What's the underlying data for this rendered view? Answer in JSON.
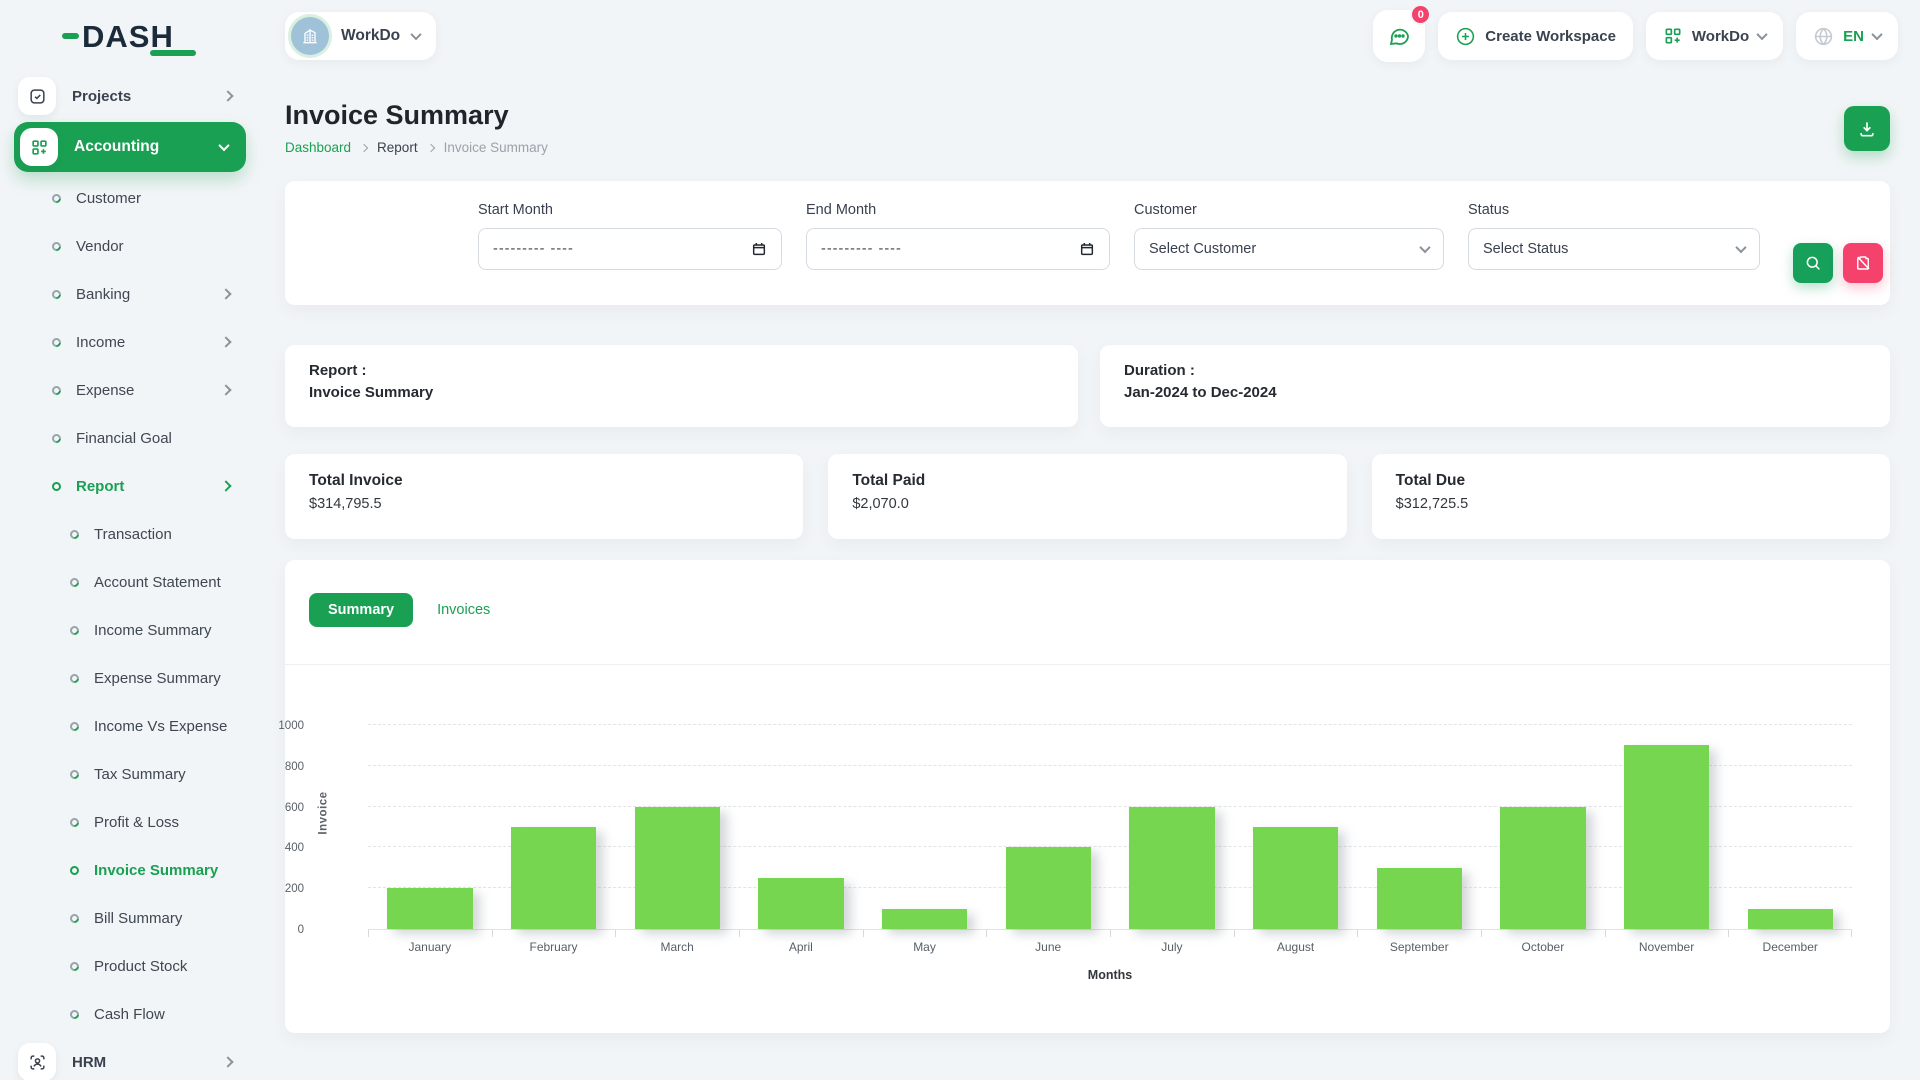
{
  "brand": {
    "logo_text": "DASH"
  },
  "topbar": {
    "workspace_selector_label": "WorkDo",
    "messages_badge": "0",
    "create_workspace_label": "Create Workspace",
    "workspace_menu_label": "WorkDo",
    "language_label": "EN"
  },
  "sidebar": {
    "projects": {
      "label": "Projects"
    },
    "accounting": {
      "label": "Accounting"
    },
    "accounting_items": [
      {
        "label": "Customer"
      },
      {
        "label": "Vendor"
      },
      {
        "label": "Banking"
      },
      {
        "label": "Income"
      },
      {
        "label": "Expense"
      },
      {
        "label": "Financial Goal"
      },
      {
        "label": "Report"
      }
    ],
    "report_items": [
      {
        "label": "Transaction"
      },
      {
        "label": "Account Statement"
      },
      {
        "label": "Income Summary"
      },
      {
        "label": "Expense Summary"
      },
      {
        "label": "Income Vs Expense"
      },
      {
        "label": "Tax Summary"
      },
      {
        "label": "Profit & Loss"
      },
      {
        "label": "Invoice Summary"
      },
      {
        "label": "Bill Summary"
      },
      {
        "label": "Product Stock"
      },
      {
        "label": "Cash Flow"
      }
    ],
    "hrm": {
      "label": "HRM"
    }
  },
  "page": {
    "title": "Invoice Summary",
    "breadcrumb": {
      "home": "Dashboard",
      "section": "Report",
      "current": "Invoice Summary"
    }
  },
  "filters": {
    "start_month": {
      "label": "Start Month",
      "placeholder": "--------- ----"
    },
    "end_month": {
      "label": "End Month",
      "placeholder": "--------- ----"
    },
    "customer": {
      "label": "Customer",
      "value": "Select Customer"
    },
    "status": {
      "label": "Status",
      "value": "Select Status"
    }
  },
  "info_cards": {
    "report": {
      "label": "Report :",
      "value": "Invoice Summary"
    },
    "duration": {
      "label": "Duration :",
      "value": "Jan-2024 to Dec-2024"
    }
  },
  "totals": [
    {
      "label": "Total Invoice",
      "value": "$314,795.5"
    },
    {
      "label": "Total Paid",
      "value": "$2,070.0"
    },
    {
      "label": "Total Due",
      "value": "$312,725.5"
    }
  ],
  "tabs": [
    {
      "label": "Summary",
      "active": true
    },
    {
      "label": "Invoices",
      "active": false
    }
  ],
  "colors": {
    "primary_green": "#1aa053",
    "bar_green": "#77d64f",
    "accent_pink": "#f5426c"
  },
  "chart_data": {
    "type": "bar",
    "title": "",
    "categories": [
      "January",
      "February",
      "March",
      "April",
      "May",
      "June",
      "July",
      "August",
      "September",
      "October",
      "November",
      "December"
    ],
    "values": [
      200,
      500,
      600,
      250,
      100,
      400,
      600,
      500,
      300,
      600,
      900,
      100
    ],
    "xlabel": "Months",
    "ylabel": "Invoice",
    "ylim": [
      0,
      1000
    ],
    "yticks": [
      0,
      200,
      400,
      600,
      800,
      1000
    ],
    "bar_color": "#77d64f",
    "grid": "dashed-horizontal",
    "legend": "none"
  }
}
